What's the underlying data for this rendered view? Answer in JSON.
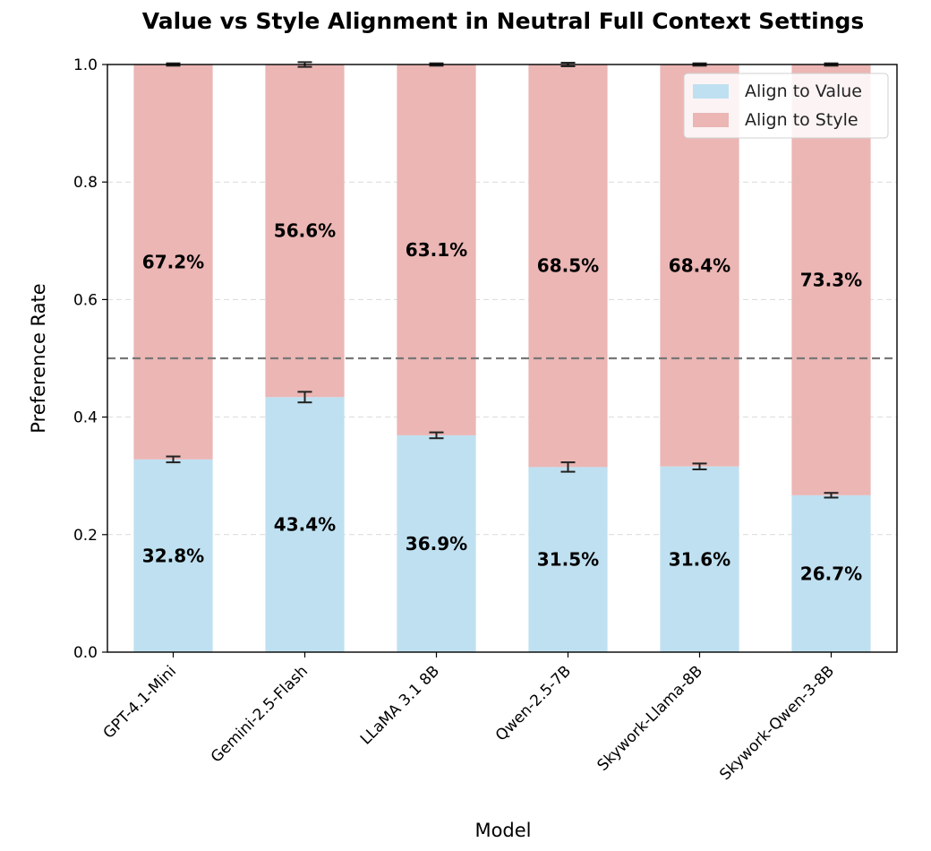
{
  "chart_data": {
    "type": "bar",
    "stacked": true,
    "title": "Value vs Style Alignment in Neutral Full Context Settings",
    "xlabel": "Model",
    "ylabel": "Preference Rate",
    "ylim": [
      0,
      1
    ],
    "yticks": [
      "0.0",
      "0.2",
      "0.4",
      "0.6",
      "0.8",
      "1.0"
    ],
    "ytick_values": [
      0,
      0.2,
      0.4,
      0.6,
      0.8,
      1.0
    ],
    "reference_line": 0.5,
    "grid": true,
    "legend_position": "top-right",
    "categories": [
      "GPT-4.1-Mini",
      "Gemini-2.5-Flash",
      "LLaMA 3.1 8B",
      "Qwen-2.5-7B",
      "Skywork-Llama-8B",
      "Skywork-Qwen-3-8B"
    ],
    "series": [
      {
        "name": "Align to Value",
        "color": "#bfe0f0",
        "values": [
          0.328,
          0.434,
          0.369,
          0.315,
          0.316,
          0.267
        ],
        "labels": [
          "32.8%",
          "43.4%",
          "36.9%",
          "31.5%",
          "31.6%",
          "26.7%"
        ],
        "errors": [
          0.005,
          0.009,
          0.005,
          0.008,
          0.005,
          0.004
        ]
      },
      {
        "name": "Align to Style",
        "color": "#ebb6b4",
        "values": [
          0.672,
          0.566,
          0.631,
          0.685,
          0.684,
          0.733
        ],
        "labels": [
          "67.2%",
          "56.6%",
          "63.1%",
          "68.5%",
          "68.4%",
          "73.3%"
        ],
        "errors": [
          0.002,
          0.004,
          0.002,
          0.003,
          0.002,
          0.002
        ]
      }
    ]
  }
}
